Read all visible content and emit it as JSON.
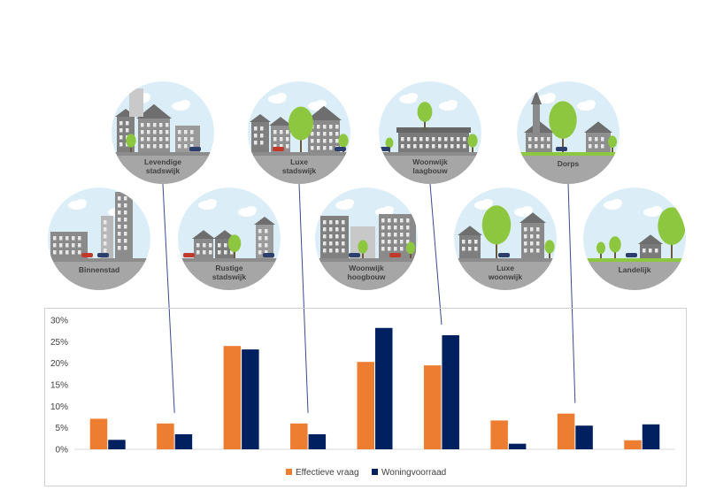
{
  "circles": [
    {
      "label_lines": [
        "Binnenstad"
      ],
      "theme": "city-highrise"
    },
    {
      "label_lines": [
        "Levendige",
        "stadswijk"
      ],
      "theme": "old-city"
    },
    {
      "label_lines": [
        "Rustige",
        "stadswijk"
      ],
      "theme": "quiet-city"
    },
    {
      "label_lines": [
        "Luxe",
        "stadswijk"
      ],
      "theme": "luxury-city"
    },
    {
      "label_lines": [
        "Woonwijk",
        "hoogbouw"
      ],
      "theme": "highrise-residential"
    },
    {
      "label_lines": [
        "Woonwijk",
        "laagbouw"
      ],
      "theme": "lowrise-residential"
    },
    {
      "label_lines": [
        "Luxe",
        "woonwijk"
      ],
      "theme": "luxury-residential"
    },
    {
      "label_lines": [
        "Dorps"
      ],
      "theme": "village"
    },
    {
      "label_lines": [
        "Landelijk"
      ],
      "theme": "rural"
    }
  ],
  "colors": {
    "demand": "#ed7d31",
    "stock": "#002060",
    "sky": "#dbeef8",
    "ground": "#a6a6a6",
    "building": "#7f7f7f",
    "tree": "#8dc63f",
    "connector": "#3b4a8c"
  },
  "chart_data": {
    "type": "bar",
    "categories": [
      "Binnenstad",
      "Levendige stadswijk",
      "Rustige stadswijk",
      "Luxe stadswijk",
      "Woonwijk hoogbouw",
      "Woonwijk laagbouw",
      "Luxe woonwijk",
      "Dorps",
      "Landelijk"
    ],
    "series": [
      {
        "name": "Effectieve vraag",
        "values": [
          7.1,
          6.0,
          24.0,
          6.0,
          20.3,
          19.5,
          6.7,
          8.3,
          2.1
        ]
      },
      {
        "name": "Woningvoorraad",
        "values": [
          2.2,
          3.5,
          23.2,
          3.5,
          28.2,
          26.5,
          1.3,
          5.5,
          5.8
        ]
      }
    ],
    "ylim": [
      0,
      30
    ],
    "yticks": [
      "0%",
      "5%",
      "10%",
      "15%",
      "20%",
      "25%",
      "30%"
    ],
    "grid": false,
    "legend": "bottom",
    "title": "",
    "xlabel": "",
    "ylabel": ""
  }
}
